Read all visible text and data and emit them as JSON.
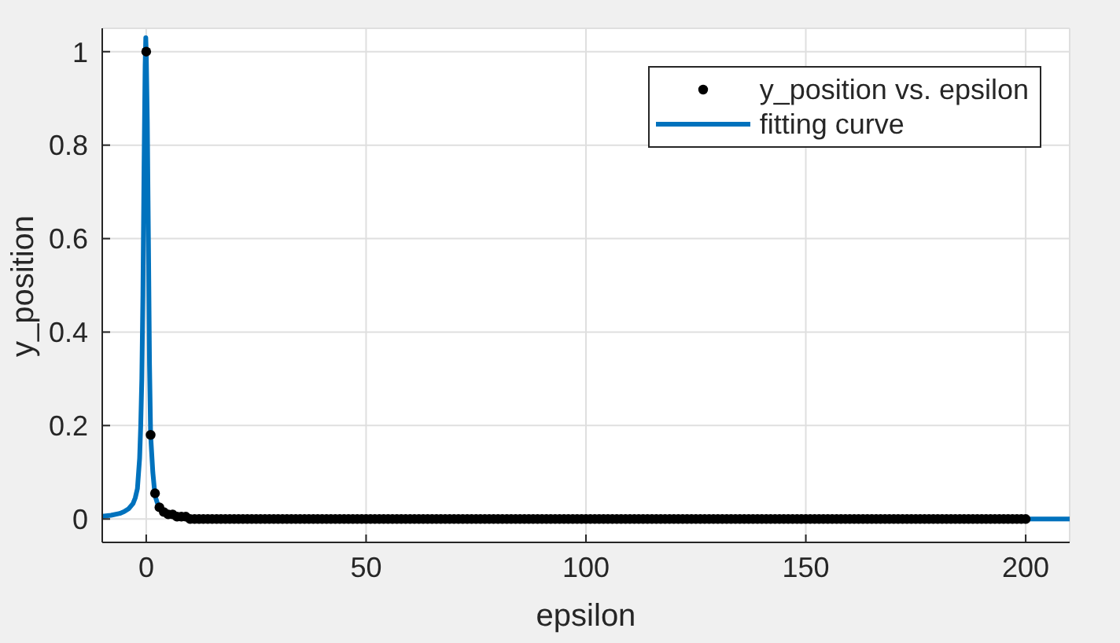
{
  "chart_data": {
    "type": "scatter",
    "xlabel": "epsilon",
    "ylabel": "y_position",
    "xlim": [
      -10,
      210
    ],
    "ylim": [
      -0.05,
      1.05
    ],
    "xticks": [
      0,
      50,
      100,
      150,
      200
    ],
    "yticks": [
      0,
      0.2,
      0.4,
      0.6,
      0.8,
      1
    ],
    "grid": true,
    "legend": "top right",
    "series": [
      {
        "name": "y_position vs. epsilon",
        "color": "#000000",
        "marker": "circle",
        "x": [
          0,
          1,
          2,
          3,
          4,
          5,
          6,
          7,
          8,
          9,
          10,
          11,
          12,
          13,
          14,
          15,
          16,
          17,
          18,
          19,
          20,
          21,
          22,
          23,
          24,
          25,
          26,
          27,
          28,
          29,
          30,
          31,
          32,
          33,
          34,
          35,
          36,
          37,
          38,
          39,
          40,
          41,
          42,
          43,
          44,
          45,
          46,
          47,
          48,
          49,
          50,
          51,
          52,
          53,
          54,
          55,
          56,
          57,
          58,
          59,
          60,
          61,
          62,
          63,
          64,
          65,
          66,
          67,
          68,
          69,
          70,
          71,
          72,
          73,
          74,
          75,
          76,
          77,
          78,
          79,
          80,
          81,
          82,
          83,
          84,
          85,
          86,
          87,
          88,
          89,
          90,
          91,
          92,
          93,
          94,
          95,
          96,
          97,
          98,
          99,
          100,
          101,
          102,
          103,
          104,
          105,
          106,
          107,
          108,
          109,
          110,
          111,
          112,
          113,
          114,
          115,
          116,
          117,
          118,
          119,
          120,
          121,
          122,
          123,
          124,
          125,
          126,
          127,
          128,
          129,
          130,
          131,
          132,
          133,
          134,
          135,
          136,
          137,
          138,
          139,
          140,
          141,
          142,
          143,
          144,
          145,
          146,
          147,
          148,
          149,
          150,
          151,
          152,
          153,
          154,
          155,
          156,
          157,
          158,
          159,
          160,
          161,
          162,
          163,
          164,
          165,
          166,
          167,
          168,
          169,
          170,
          171,
          172,
          173,
          174,
          175,
          176,
          177,
          178,
          179,
          180,
          181,
          182,
          183,
          184,
          185,
          186,
          187,
          188,
          189,
          190,
          191,
          192,
          193,
          194,
          195,
          196,
          197,
          198,
          199,
          200
        ],
        "values": [
          1,
          0.18,
          0.055,
          0.025,
          0.015,
          0.01,
          0.01,
          0.005,
          0.005,
          0.005,
          0,
          0,
          0,
          0,
          0,
          0,
          0,
          0,
          0,
          0,
          0,
          0,
          0,
          0,
          0,
          0,
          0,
          0,
          0,
          0,
          0,
          0,
          0,
          0,
          0,
          0,
          0,
          0,
          0,
          0,
          0,
          0,
          0,
          0,
          0,
          0,
          0,
          0,
          0,
          0,
          0,
          0,
          0,
          0,
          0,
          0,
          0,
          0,
          0,
          0,
          0,
          0,
          0,
          0,
          0,
          0,
          0,
          0,
          0,
          0,
          0,
          0,
          0,
          0,
          0,
          0,
          0,
          0,
          0,
          0,
          0,
          0,
          0,
          0,
          0,
          0,
          0,
          0,
          0,
          0,
          0,
          0,
          0,
          0,
          0,
          0,
          0,
          0,
          0,
          0,
          0,
          0,
          0,
          0,
          0,
          0,
          0,
          0,
          0,
          0,
          0,
          0,
          0,
          0,
          0,
          0,
          0,
          0,
          0,
          0,
          0,
          0,
          0,
          0,
          0,
          0,
          0,
          0,
          0,
          0,
          0,
          0,
          0,
          0,
          0,
          0,
          0,
          0,
          0,
          0,
          0,
          0,
          0,
          0,
          0,
          0,
          0,
          0,
          0,
          0,
          0,
          0,
          0,
          0,
          0,
          0,
          0,
          0,
          0,
          0,
          0,
          0,
          0,
          0,
          0,
          0,
          0,
          0,
          0,
          0,
          0,
          0,
          0,
          0,
          0,
          0,
          0,
          0,
          0,
          0,
          0,
          0,
          0,
          0,
          0,
          0,
          0,
          0,
          0,
          0,
          0,
          0,
          0,
          0,
          0,
          0,
          0,
          0,
          0,
          0,
          0
        ]
      },
      {
        "name": "fitting curve",
        "type": "line",
        "color": "#0072bd",
        "line_style": "solid",
        "x": [
          -10,
          -8,
          -6,
          -5,
          -4,
          -3,
          -2.5,
          -2,
          -1.5,
          -1.25,
          -1,
          -0.75,
          -0.5,
          -0.25,
          -0.1,
          0,
          0.25,
          0.5,
          0.75,
          1,
          1.5,
          2,
          2.5,
          3,
          4,
          5,
          6,
          8,
          10,
          15,
          20,
          50,
          100,
          150,
          200,
          210
        ],
        "values": [
          0.006,
          0.008,
          0.012,
          0.016,
          0.022,
          0.033,
          0.045,
          0.065,
          0.13,
          0.2,
          0.3,
          0.48,
          0.75,
          0.97,
          1.03,
          1,
          0.85,
          0.6,
          0.33,
          0.18,
          0.1,
          0.05,
          0.035,
          0.025,
          0.015,
          0.01,
          0.008,
          0.005,
          0.004,
          0.002,
          0.001,
          0,
          0,
          0,
          0,
          0
        ]
      }
    ]
  }
}
